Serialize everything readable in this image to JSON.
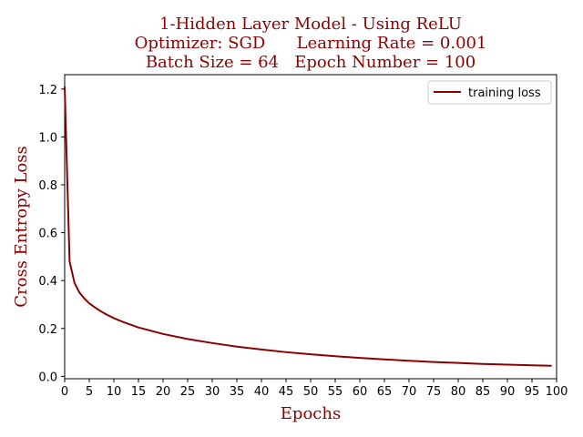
{
  "chart_data": {
    "type": "line",
    "title": [
      "1-Hidden Layer Model - Using ReLU",
      "Optimizer: SGD      Learning Rate = 0.001",
      "Batch Size = 64   Epoch Number = 100"
    ],
    "xlabel": "Epochs",
    "ylabel": "Cross Entropy Loss",
    "xlim": [
      0,
      100
    ],
    "ylim": [
      -0.01,
      1.26
    ],
    "xticks": [
      0,
      5,
      10,
      15,
      20,
      25,
      30,
      35,
      40,
      45,
      50,
      55,
      60,
      65,
      70,
      75,
      80,
      85,
      90,
      95,
      100
    ],
    "yticks": [
      "0.0",
      "0.2",
      "0.4",
      "0.6",
      "0.8",
      "1.0",
      "1.2"
    ],
    "ytick_values": [
      0.0,
      0.2,
      0.4,
      0.6,
      0.8,
      1.0,
      1.2
    ],
    "legend_position": "top-right",
    "grid": false,
    "series": [
      {
        "name": "training loss",
        "color": "#8b0000",
        "x": [
          0,
          1,
          2,
          3,
          4,
          5,
          6,
          7,
          8,
          9,
          10,
          12,
          15,
          20,
          25,
          30,
          35,
          40,
          45,
          50,
          55,
          60,
          65,
          70,
          75,
          80,
          85,
          90,
          95,
          99
        ],
        "y": [
          1.21,
          0.48,
          0.39,
          0.35,
          0.325,
          0.305,
          0.29,
          0.276,
          0.264,
          0.253,
          0.243,
          0.226,
          0.204,
          0.177,
          0.156,
          0.139,
          0.124,
          0.112,
          0.101,
          0.092,
          0.084,
          0.077,
          0.071,
          0.065,
          0.06,
          0.056,
          0.052,
          0.049,
          0.046,
          0.044
        ]
      }
    ]
  }
}
